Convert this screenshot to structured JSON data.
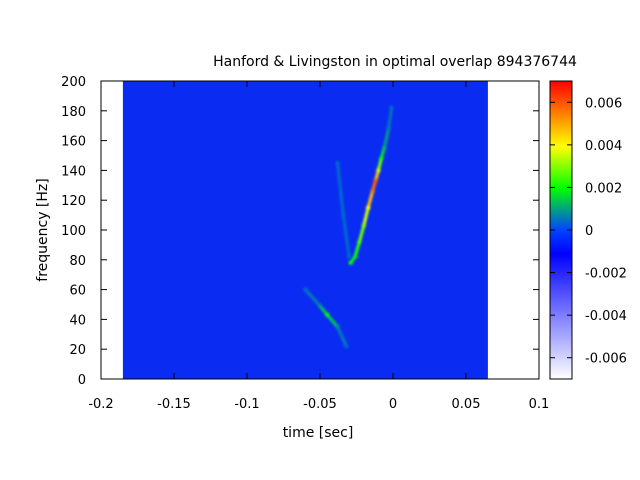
{
  "chart_data": {
    "type": "heatmap",
    "title": "Hanford & Livingston in optimal overlap 894376744",
    "xlabel": "time [sec]",
    "ylabel": "frequency [Hz]",
    "xlim": [
      -0.2,
      0.1
    ],
    "ylim": [
      0,
      200
    ],
    "x_ticks": [
      -0.2,
      -0.15,
      -0.1,
      -0.05,
      0,
      0.05,
      0.1
    ],
    "x_tick_labels": [
      "-0.2",
      "-0.15",
      "-0.1",
      "-0.05",
      "0",
      "0.05",
      "0.1"
    ],
    "y_ticks": [
      0,
      20,
      40,
      60,
      80,
      100,
      120,
      140,
      160,
      180,
      200
    ],
    "y_tick_labels": [
      "0",
      "20",
      "40",
      "60",
      "80",
      "100",
      "120",
      "140",
      "160",
      "180",
      "200"
    ],
    "data_extent_x": [
      -0.185,
      0.065
    ],
    "data_extent_y": [
      0,
      200
    ],
    "background_value": 0,
    "colorbar": {
      "range": [
        -0.007,
        0.007
      ],
      "ticks": [
        -0.006,
        -0.004,
        -0.002,
        0,
        0.002,
        0.004,
        0.006
      ],
      "tick_labels": [
        "-0.006",
        "-0.004",
        "-0.002",
        "0",
        "0.002",
        "0.004",
        "0.006"
      ],
      "colors": [
        "#ffffff",
        "#0000ff",
        "#0044ff",
        "#00ff00",
        "#ffff00",
        "#ff0000"
      ]
    },
    "features": [
      {
        "name": "chirp track",
        "points": [
          {
            "x": -0.029,
            "y": 78,
            "value": 0.002
          },
          {
            "x": -0.026,
            "y": 82,
            "value": 0.0018
          },
          {
            "x": -0.023,
            "y": 92,
            "value": 0.0025
          },
          {
            "x": -0.02,
            "y": 103,
            "value": 0.003
          },
          {
            "x": -0.017,
            "y": 115,
            "value": 0.004
          },
          {
            "x": -0.014,
            "y": 126,
            "value": 0.0055
          },
          {
            "x": -0.012,
            "y": 133,
            "value": 0.006
          },
          {
            "x": -0.01,
            "y": 140,
            "value": 0.0035
          },
          {
            "x": -0.008,
            "y": 148,
            "value": 0.002
          },
          {
            "x": -0.006,
            "y": 155,
            "value": 0.0012
          },
          {
            "x": -0.003,
            "y": 168,
            "value": 0.0006
          },
          {
            "x": -0.001,
            "y": 182,
            "value": 0.0004
          }
        ]
      },
      {
        "name": "low frequency feature",
        "points": [
          {
            "x": -0.06,
            "y": 60,
            "value": 0.0004
          },
          {
            "x": -0.05,
            "y": 49,
            "value": 0.0008
          },
          {
            "x": -0.045,
            "y": 43,
            "value": 0.002
          },
          {
            "x": -0.038,
            "y": 35,
            "value": 0.0008
          },
          {
            "x": -0.032,
            "y": 22,
            "value": 0.0004
          }
        ]
      },
      {
        "name": "faint line",
        "points": [
          {
            "x": -0.038,
            "y": 145,
            "value": 0.0004
          },
          {
            "x": -0.034,
            "y": 110,
            "value": 0.0004
          },
          {
            "x": -0.03,
            "y": 82,
            "value": 0.0004
          }
        ]
      }
    ]
  }
}
